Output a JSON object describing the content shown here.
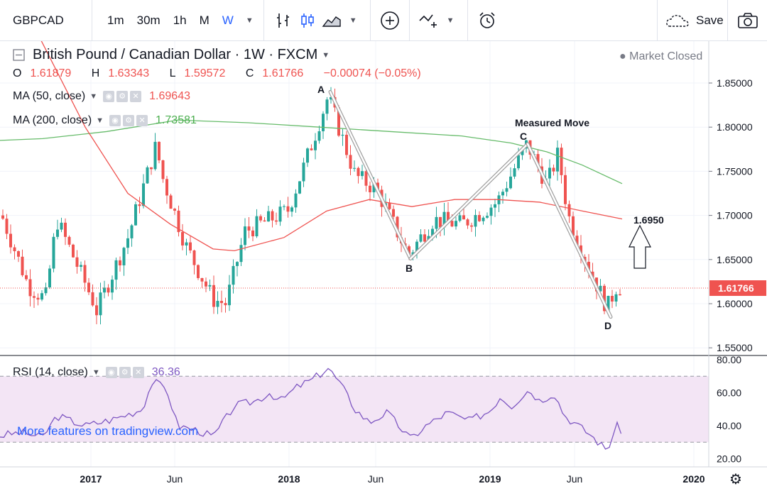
{
  "toolbar": {
    "symbol": "GBPCAD",
    "intervals": [
      "1m",
      "30m",
      "1h",
      "M",
      "W"
    ],
    "active_interval": "W",
    "save_label": "Save"
  },
  "legend": {
    "title": "British Pound / Canadian Dollar · 1W · FXCM",
    "market_status": "Market Closed",
    "ohlc": {
      "o_label": "O",
      "o": "1.61879",
      "h_label": "H",
      "h": "1.63343",
      "l_label": "L",
      "l": "1.59572",
      "c_label": "C",
      "c": "1.61766",
      "change": "−0.00074 (−0.05%)"
    },
    "ma50": {
      "label": "MA (50, close)",
      "value": "1.69643"
    },
    "ma200": {
      "label": "MA (200, close)",
      "value": "1.73581"
    },
    "rsi": {
      "label": "RSI (14, close)",
      "value": "36.36"
    },
    "promo_link": "More features on tradingview.com"
  },
  "colors": {
    "up": "#26a69a",
    "down": "#ef5350",
    "ma50": "#ef5350",
    "ma200": "#66bb6a",
    "rsi": "#7e57c2",
    "rsi_band": "#f3e5f5",
    "pattern": "#9e9e9e",
    "price_tag": "#ef5350"
  },
  "annotations": {
    "A": "A",
    "B": "B",
    "C": "C",
    "D": "D",
    "measured_move": "Measured Move",
    "target": "1.6950"
  },
  "chart_data": {
    "type": "candlestick",
    "x_ticks": [
      "2017",
      "Jun",
      "2018",
      "Jun",
      "2019",
      "Jun",
      "2020"
    ],
    "y_ticks": [
      "1.85000",
      "1.80000",
      "1.75000",
      "1.70000",
      "1.65000",
      "1.60000",
      "1.55000"
    ],
    "last_price": "1.61766",
    "rsi_ticks": [
      "80.00",
      "60.00",
      "40.00",
      "20.00"
    ],
    "rsi_band": [
      30,
      70
    ],
    "pattern_points": {
      "A": 1.84,
      "B": 1.651,
      "C": 1.781,
      "D": 1.585
    },
    "ma200_value": 1.73581,
    "ma50_value": 1.69643
  }
}
